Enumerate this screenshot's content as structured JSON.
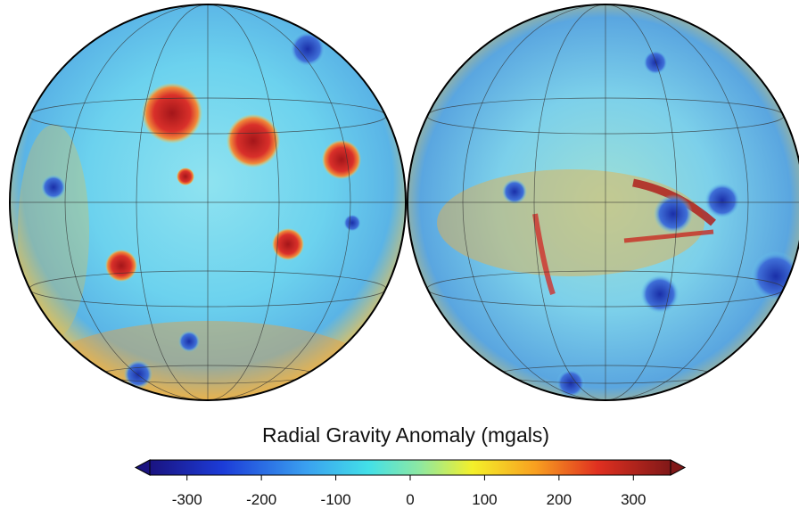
{
  "colorbar": {
    "title": "Radial Gravity Anomaly (mgals)",
    "lim": [
      -350,
      350
    ],
    "ticks": [
      -300,
      -200,
      -100,
      0,
      100,
      200,
      300
    ]
  }
}
